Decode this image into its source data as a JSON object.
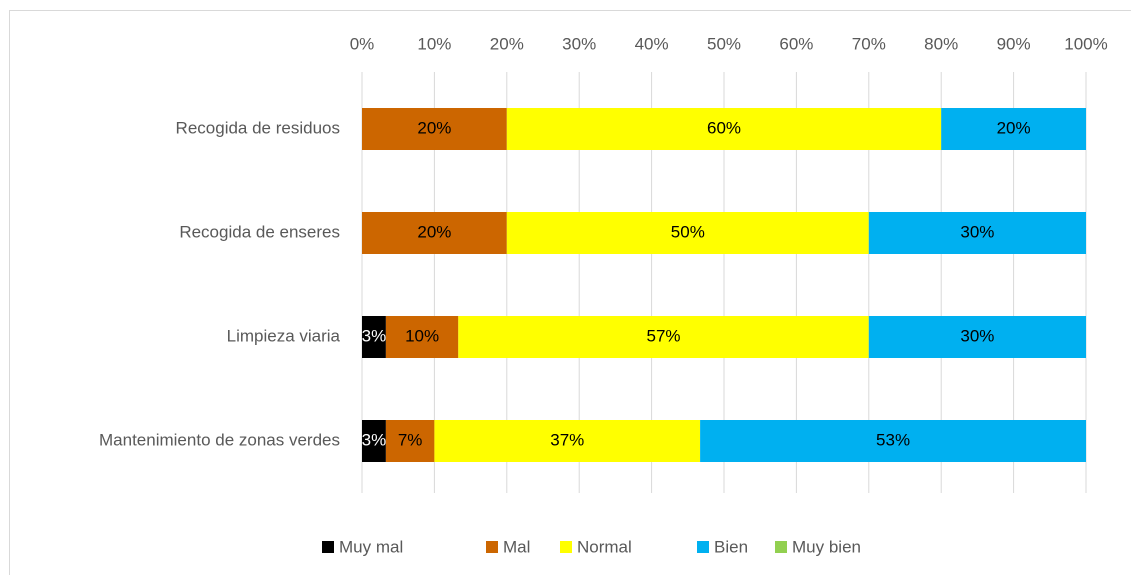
{
  "chart_data": {
    "type": "stacked-bar-horizontal",
    "categories": [
      "Recogida de residuos",
      "Recogida de enseres",
      "Limpieza viaria",
      "Mantenimiento de zonas verdes"
    ],
    "series": [
      {
        "name": "Muy mal",
        "color": "#000000",
        "values": [
          0,
          0,
          3.3,
          3.3
        ],
        "value_labels": [
          null,
          null,
          "3%",
          "3%"
        ]
      },
      {
        "name": "Mal",
        "color": "#cc6600",
        "values": [
          20,
          20,
          10,
          6.7
        ],
        "value_labels": [
          "20%",
          "20%",
          "10%",
          "7%"
        ]
      },
      {
        "name": "Normal",
        "color": "#ffff00",
        "values": [
          60,
          50,
          56.7,
          36.7
        ],
        "value_labels": [
          "60%",
          "50%",
          "57%",
          "37%"
        ]
      },
      {
        "name": "Bien",
        "color": "#00b0f0",
        "values": [
          20,
          30,
          30,
          53.3
        ],
        "value_labels": [
          "20%",
          "30%",
          "30%",
          "53%"
        ]
      },
      {
        "name": "Muy bien",
        "color": "#92d050",
        "values": [
          0,
          0,
          0,
          0
        ]
      }
    ],
    "xlim": [
      0,
      100
    ],
    "xticks": [
      {
        "value": 0,
        "label": "0%"
      },
      {
        "value": 10,
        "label": "10%"
      },
      {
        "value": 20,
        "label": "20%"
      },
      {
        "value": 30,
        "label": "30%"
      },
      {
        "value": 40,
        "label": "40%"
      },
      {
        "value": 50,
        "label": "50%"
      },
      {
        "value": 60,
        "label": "60%"
      },
      {
        "value": 70,
        "label": "70%"
      },
      {
        "value": 80,
        "label": "80%"
      },
      {
        "value": 90,
        "label": "90%"
      },
      {
        "value": 100,
        "label": "100%"
      }
    ],
    "grid": true,
    "legend": "bottom"
  }
}
